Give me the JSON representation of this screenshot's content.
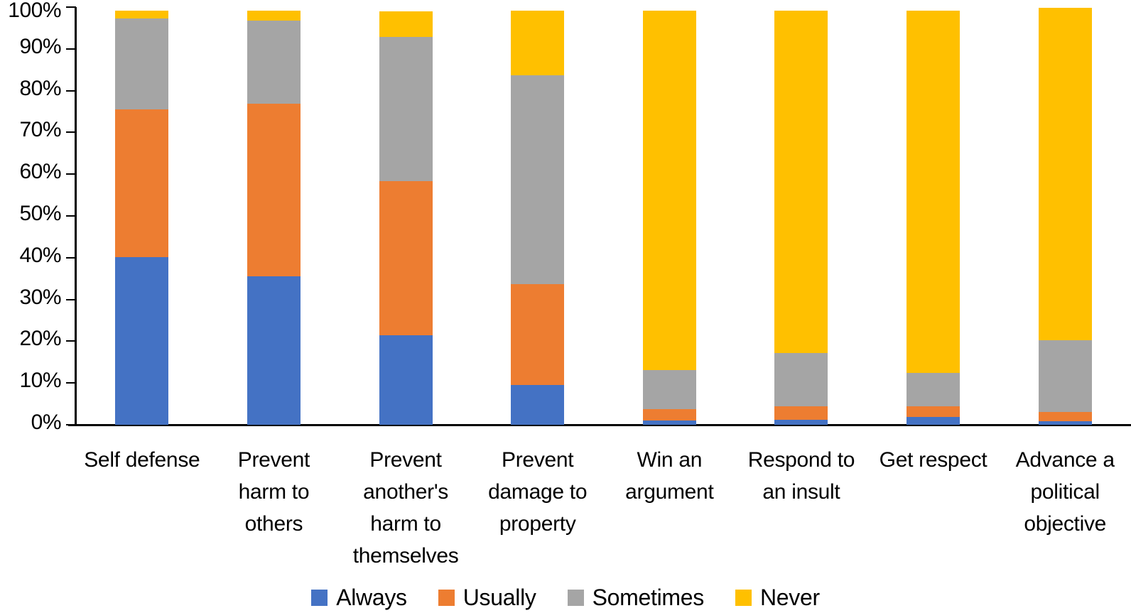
{
  "chart_data": {
    "type": "bar",
    "stacked": true,
    "percent_stacked": true,
    "title": "",
    "xlabel": "",
    "ylabel": "",
    "ylim": [
      0,
      100
    ],
    "grid": false,
    "legend_position": "bottom",
    "ytick_labels": [
      "0%",
      "10%",
      "20%",
      "30%",
      "40%",
      "50%",
      "60%",
      "70%",
      "80%",
      "90%",
      "100%"
    ],
    "categories": [
      "Self defense",
      "Prevent harm to others",
      "Prevent another's harm to themselves",
      "Prevent damage to property",
      "Win an argument",
      "Respond to an insult",
      "Get respect",
      "Advance a political objective"
    ],
    "category_label_lines": [
      [
        "Self defense"
      ],
      [
        "Prevent",
        "harm to",
        "others"
      ],
      [
        "Prevent",
        "another's",
        "harm to",
        "themselves"
      ],
      [
        "Prevent",
        "damage to",
        "property"
      ],
      [
        "Win an",
        "argument"
      ],
      [
        "Respond to",
        "an insult"
      ],
      [
        "Get respect"
      ],
      [
        "Advance a",
        "political",
        "objective"
      ]
    ],
    "series": [
      {
        "name": "Always",
        "color": "#4472C4",
        "values": [
          40.2,
          35.6,
          21.4,
          9.5,
          1.1,
          1.2,
          1.9,
          0.9
        ]
      },
      {
        "name": "Usually",
        "color": "#ED7D31",
        "values": [
          35.3,
          41.3,
          37.0,
          24.2,
          2.6,
          3.3,
          2.6,
          2.1
        ]
      },
      {
        "name": "Sometimes",
        "color": "#A5A5A5",
        "values": [
          21.7,
          19.8,
          34.5,
          49.9,
          9.4,
          12.7,
          7.9,
          17.3
        ]
      },
      {
        "name": "Never",
        "color": "#FFC000",
        "values": [
          2.0,
          2.4,
          6.1,
          15.6,
          86.1,
          82.0,
          86.8,
          79.5
        ]
      }
    ]
  },
  "axis_colors": {
    "line": "#000000",
    "text": "#000000"
  }
}
